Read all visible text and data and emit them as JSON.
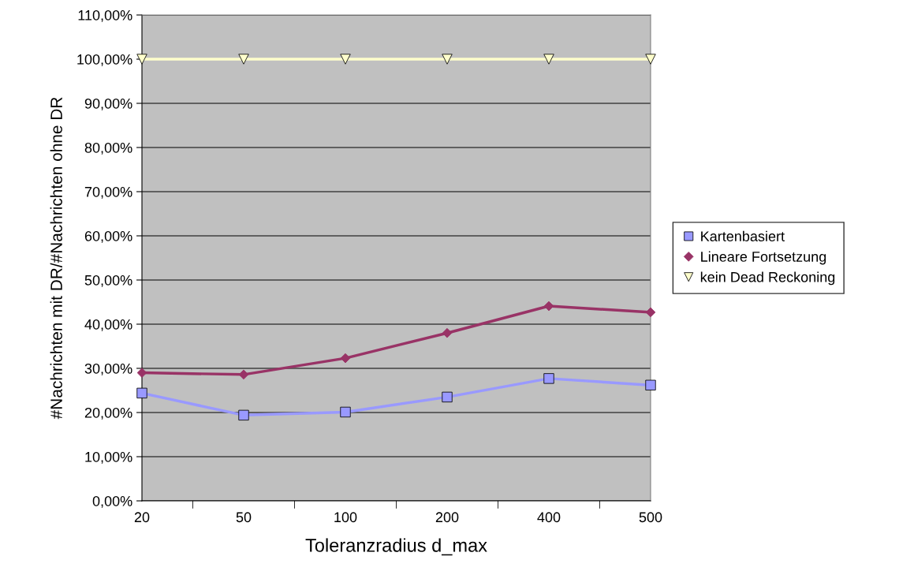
{
  "chart_data": {
    "type": "line",
    "xlabel": "Toleranzradius d_max",
    "ylabel": "#Nachrichten mit DR/#Nachrichten ohne DR",
    "categories": [
      "20",
      "50",
      "100",
      "200",
      "400",
      "500"
    ],
    "series": [
      {
        "name": "Kartenbasiert",
        "color": "#9999ff",
        "marker": "square",
        "values": [
          24.4,
          19.4,
          20.1,
          23.5,
          27.7,
          26.2
        ]
      },
      {
        "name": "Lineare Fortsetzung",
        "color": "#993366",
        "marker": "diamond",
        "values": [
          29.0,
          28.6,
          32.3,
          38.0,
          44.1,
          42.7
        ]
      },
      {
        "name": "kein Dead Reckoning",
        "color": "#ffffcc",
        "marker": "triangle",
        "values": [
          100,
          100,
          100,
          100,
          100,
          100
        ]
      }
    ],
    "ylim": [
      0,
      110
    ],
    "yticks": [
      {
        "value": 0,
        "label": "0,00%"
      },
      {
        "value": 10,
        "label": "10,00%"
      },
      {
        "value": 20,
        "label": "20,00%"
      },
      {
        "value": 30,
        "label": "30,00%"
      },
      {
        "value": 40,
        "label": "40,00%"
      },
      {
        "value": 50,
        "label": "50,00%"
      },
      {
        "value": 60,
        "label": "60,00%"
      },
      {
        "value": 70,
        "label": "70,00%"
      },
      {
        "value": 80,
        "label": "80,00%"
      },
      {
        "value": 90,
        "label": "90,00%"
      },
      {
        "value": 100,
        "label": "100,00%"
      },
      {
        "value": 110,
        "label": "110,00%"
      }
    ],
    "grid": "y",
    "legend": "right"
  }
}
